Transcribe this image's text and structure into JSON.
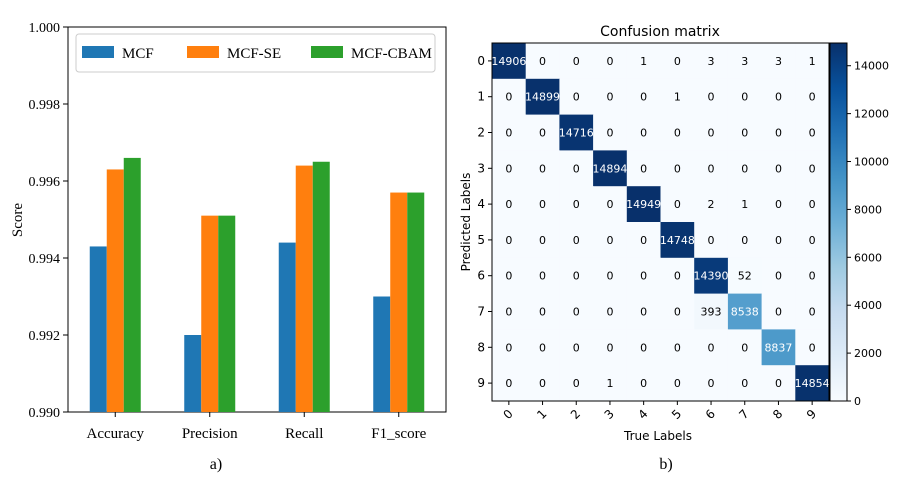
{
  "chart_data": [
    {
      "type": "bar",
      "panel_label": "a)",
      "ylabel": "Score",
      "xlabel": "",
      "ylim": [
        0.99,
        1.0
      ],
      "yticks": [
        "0.990",
        "0.992",
        "0.994",
        "0.996",
        "0.998",
        "1.000"
      ],
      "yticks_values": [
        0.99,
        0.992,
        0.994,
        0.996,
        0.998,
        1.0
      ],
      "categories": [
        "Accuracy",
        "Precision",
        "Recall",
        "F1_score"
      ],
      "legend_position": "top",
      "series": [
        {
          "name": "MCF",
          "color": "#1f77b4",
          "values": [
            0.9943,
            0.992,
            0.9944,
            0.993
          ]
        },
        {
          "name": "MCF-SE",
          "color": "#ff7f0e",
          "values": [
            0.9963,
            0.9951,
            0.9964,
            0.9957
          ]
        },
        {
          "name": "MCF-CBAM",
          "color": "#2ca02c",
          "values": [
            0.9966,
            0.9951,
            0.9965,
            0.9957
          ]
        }
      ]
    },
    {
      "type": "heatmap",
      "panel_label": "b)",
      "title": "Confusion matrix",
      "xlabel": "True Labels",
      "ylabel": "Predicted Labels",
      "x_ticks": [
        "0",
        "1",
        "2",
        "3",
        "4",
        "5",
        "6",
        "7",
        "8",
        "9"
      ],
      "y_ticks": [
        "0",
        "1",
        "2",
        "3",
        "4",
        "5",
        "6",
        "7",
        "8",
        "9"
      ],
      "colorbar_ticks": [
        "0",
        "2000",
        "4000",
        "6000",
        "8000",
        "10000",
        "12000",
        "14000"
      ],
      "colorbar_tick_values": [
        0,
        2000,
        4000,
        6000,
        8000,
        10000,
        12000,
        14000
      ],
      "colorbar_max": 14949,
      "matrix": [
        [
          14906,
          0,
          0,
          0,
          1,
          0,
          3,
          3,
          3,
          1
        ],
        [
          0,
          14899,
          0,
          0,
          0,
          1,
          0,
          0,
          0,
          0
        ],
        [
          0,
          0,
          14716,
          0,
          0,
          0,
          0,
          0,
          0,
          0
        ],
        [
          0,
          0,
          0,
          14894,
          0,
          0,
          0,
          0,
          0,
          0
        ],
        [
          0,
          0,
          0,
          0,
          14949,
          0,
          2,
          1,
          0,
          0
        ],
        [
          0,
          0,
          0,
          0,
          0,
          14748,
          0,
          0,
          0,
          0
        ],
        [
          0,
          0,
          0,
          0,
          0,
          0,
          14390,
          52,
          0,
          0
        ],
        [
          0,
          0,
          0,
          0,
          0,
          0,
          393,
          8538,
          0,
          0
        ],
        [
          0,
          0,
          0,
          0,
          0,
          0,
          0,
          0,
          8837,
          0
        ],
        [
          0,
          0,
          0,
          1,
          0,
          0,
          0,
          0,
          0,
          14854
        ]
      ]
    }
  ]
}
